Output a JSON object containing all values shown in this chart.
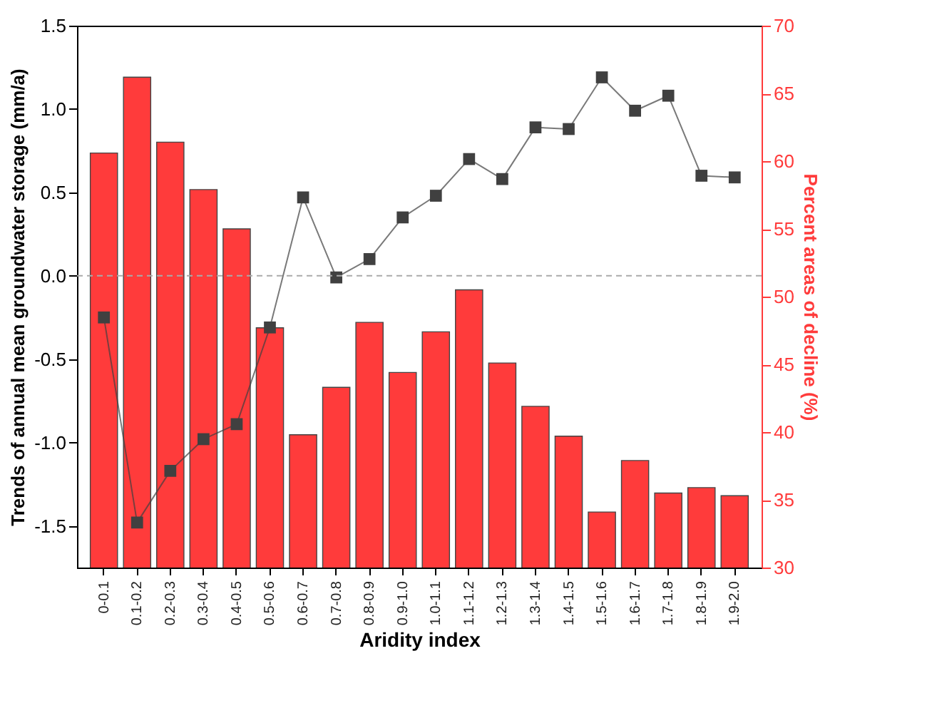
{
  "chart_data": {
    "type": "bar",
    "xlabel": "Aridity index",
    "ylabel": "Trends of annual mean groundwater storage (mm/a)",
    "y2label": "Percent areas of decline (%)",
    "categories": [
      "0-0.1",
      "0.1-0.2",
      "0.2-0.3",
      "0.3-0.4",
      "0.4-0.5",
      "0.5-0.6",
      "0.6-0.7",
      "0.7-0.8",
      "0.8-0.9",
      "0.9-1.0",
      "1.0-1.1",
      "1.1-1.2",
      "1.2-1.3",
      "1.3-1.4",
      "1.4-1.5",
      "1.5-1.6",
      "1.6-1.7",
      "1.7-1.8",
      "1.8-1.9",
      "1.9-2.0"
    ],
    "series": [
      {
        "axis": "y2",
        "color": "#ff3b3b",
        "values": [
          60.6,
          66.2,
          61.4,
          57.9,
          55.0,
          47.7,
          39.8,
          43.3,
          48.1,
          44.4,
          47.4,
          50.5,
          45.1,
          41.9,
          39.7,
          34.1,
          37.9,
          35.5,
          35.9,
          35.3
        ]
      },
      {
        "type": "line",
        "axis": "y",
        "color": "#404040",
        "values": [
          -0.25,
          -1.48,
          -1.17,
          -0.98,
          -0.89,
          -0.31,
          0.47,
          -0.01,
          0.1,
          0.35,
          0.48,
          0.7,
          0.58,
          0.89,
          0.88,
          1.19,
          0.99,
          1.08,
          0.6,
          0.59
        ]
      }
    ],
    "ylim": [
      -1.75,
      1.5
    ],
    "yticks": [
      -1.5,
      {
        "value": -1,
        "label": "-1.0"
      },
      -0.5,
      {
        "value": 0,
        "label": "0.0"
      },
      0.5,
      {
        "value": 1,
        "label": "1.0"
      },
      1.5
    ],
    "y2lim": [
      30,
      70
    ],
    "y2ticks": [
      30,
      35,
      40,
      45,
      50,
      55,
      60,
      65,
      70
    ],
    "ref_lines": [
      {
        "axis": "y",
        "value": 0,
        "line_style": "dashed",
        "color": "#aaaaaa"
      }
    ],
    "marker": "square"
  }
}
